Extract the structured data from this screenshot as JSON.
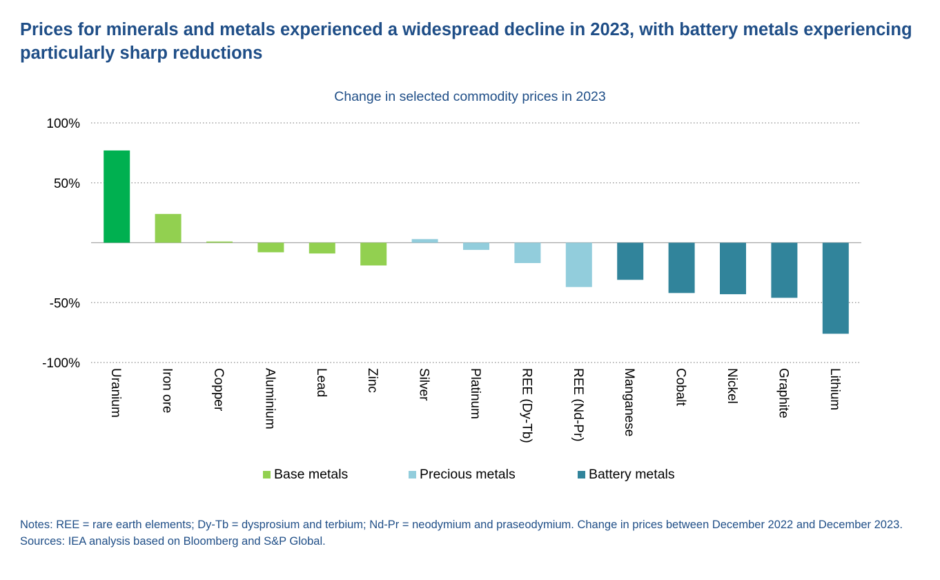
{
  "headline": "Prices for minerals and metals experienced a widespread decline in 2023, with battery metals experiencing particularly sharp reductions",
  "chart_data": {
    "type": "bar",
    "title": "Change in selected commodity prices in 2023",
    "xlabel": "",
    "ylabel": "",
    "ylim": [
      -100,
      100
    ],
    "yticks": [
      100,
      50,
      -50,
      -100
    ],
    "ytick_labels": [
      "100%",
      "50%",
      "-50%",
      "-100%"
    ],
    "grid": "horizontal dotted",
    "categories": [
      "Uranium",
      "Iron ore",
      "Copper",
      "Aluminium",
      "Lead",
      "Zinc",
      "Silver",
      "Platinum",
      "REE (Dy-Tb)",
      "REE (Nd-Pr)",
      "Manganese",
      "Cobalt",
      "Nickel",
      "Graphite",
      "Lithium"
    ],
    "values": [
      77,
      24,
      1,
      -8,
      -9,
      -19,
      3,
      -6,
      -17,
      -37,
      -31,
      -42,
      -43,
      -46,
      -76
    ],
    "groups": [
      "uranium",
      "base",
      "base",
      "base",
      "base",
      "base",
      "precious",
      "precious",
      "precious",
      "precious",
      "battery",
      "battery",
      "battery",
      "battery",
      "battery"
    ],
    "colors": {
      "uranium": "#00b050",
      "base": "#92d050",
      "precious": "#92cddc",
      "battery": "#31849b"
    },
    "legend": [
      {
        "label": "Base metals",
        "group": "base"
      },
      {
        "label": "Precious metals",
        "group": "precious"
      },
      {
        "label": "Battery metals",
        "group": "battery"
      }
    ],
    "legend_position": "bottom"
  },
  "notes": "Notes: REE = rare earth elements; Dy-Tb = dysprosium and terbium; Nd-Pr = neodymium and praseodymium. Change in prices between December 2022 and December 2023.",
  "sources": "Sources: IEA analysis based on Bloomberg and S&P Global."
}
